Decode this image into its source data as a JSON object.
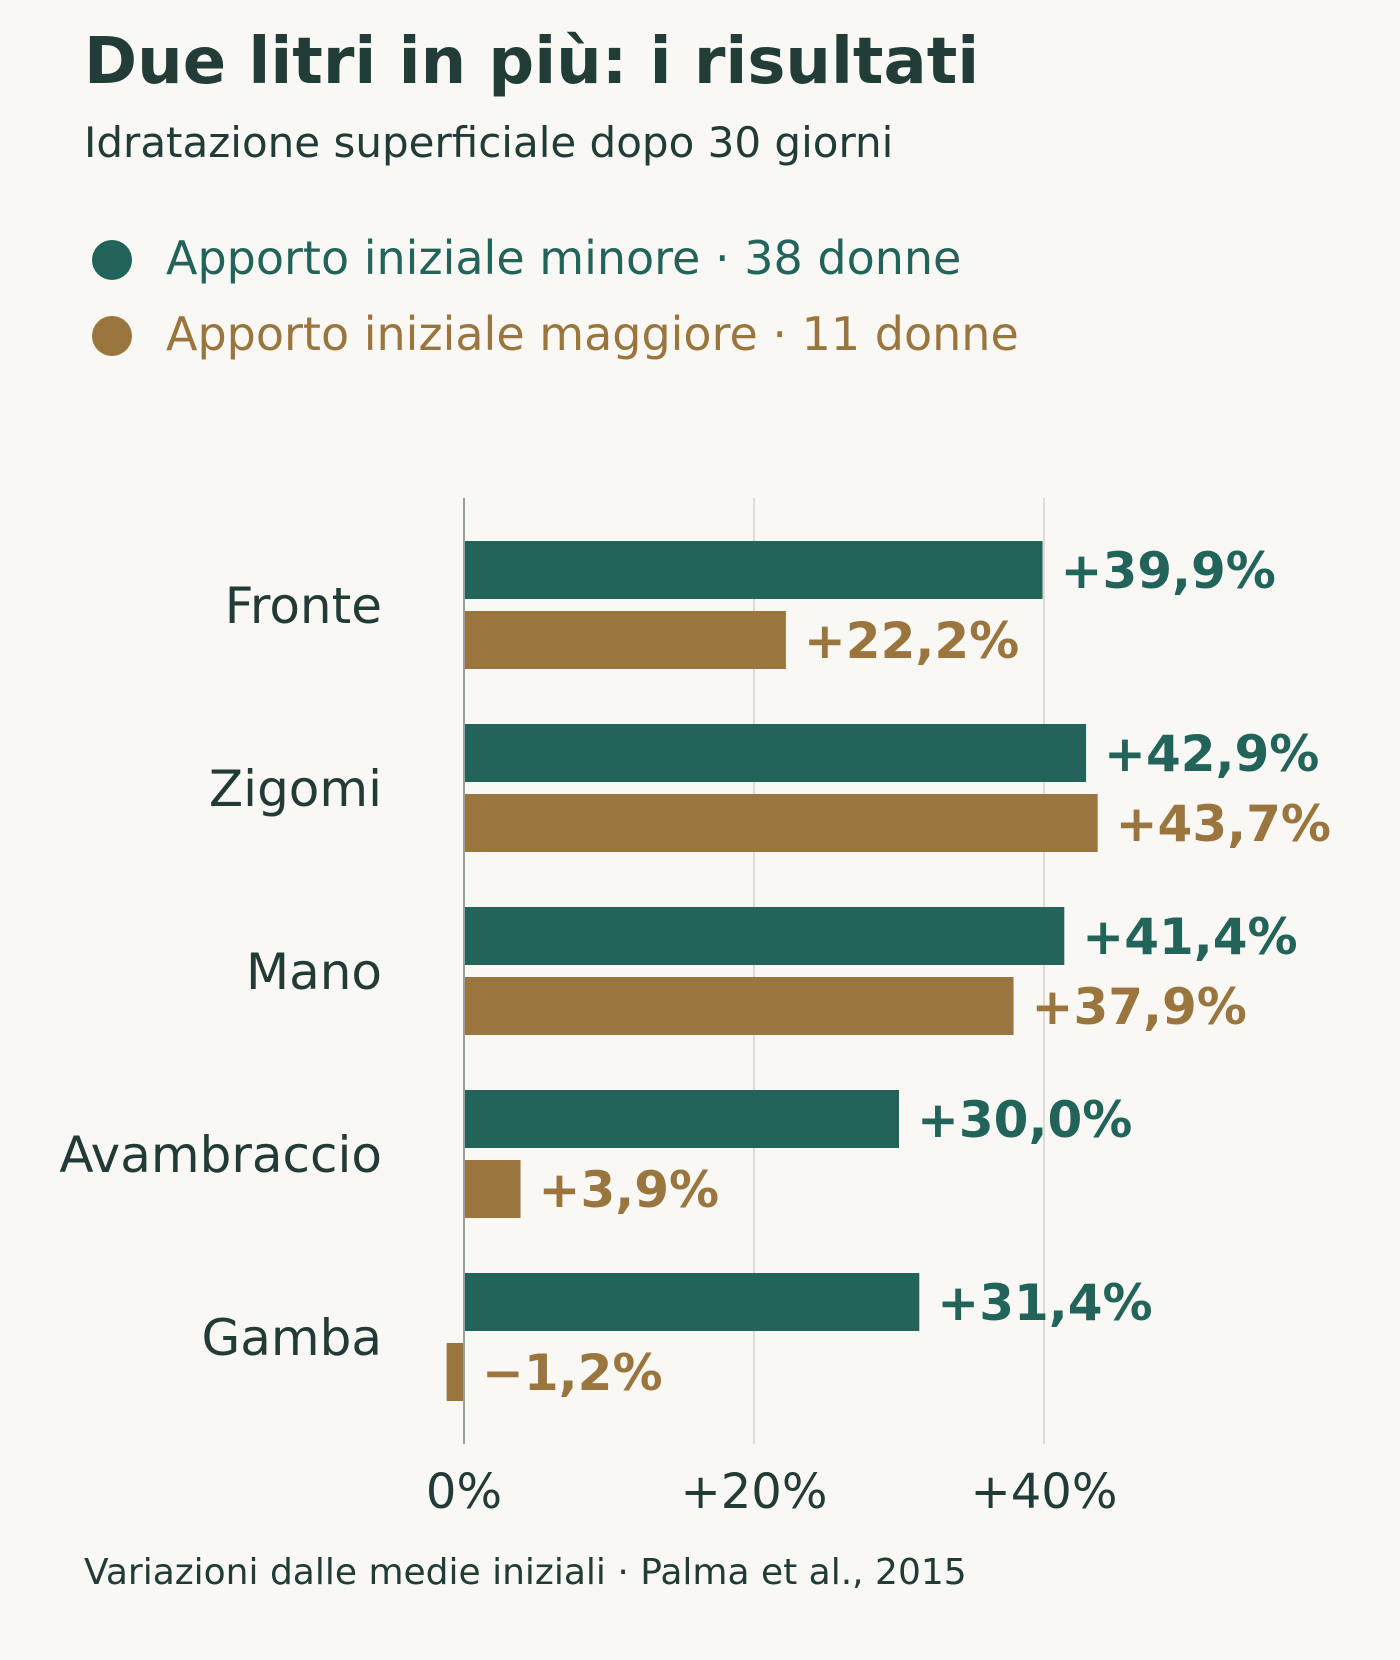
{
  "chart_data": {
    "type": "bar",
    "orientation": "horizontal",
    "title": "Due litri in più: i risultati",
    "subtitle": "Idratazione superficiale dopo 30 giorni",
    "categories": [
      "Fronte",
      "Zigomi",
      "Mano",
      "Avambraccio",
      "Gamba"
    ],
    "series": [
      {
        "name": "Apporto iniziale minore · 38 donne",
        "color": "#22645a",
        "values": [
          39.9,
          42.9,
          41.4,
          30.0,
          31.4
        ],
        "labels": [
          "+39,9%",
          "+42,9%",
          "+41,4%",
          "+30,0%",
          "+31,4%"
        ]
      },
      {
        "name": "Apporto iniziale maggiore · 11 donne",
        "color": "#9a763e",
        "values": [
          22.2,
          43.7,
          37.9,
          3.9,
          -1.2
        ],
        "labels": [
          "+22,2%",
          "+43,7%",
          "+37,9%",
          "+3,9%",
          "−1,2%"
        ]
      }
    ],
    "x_ticks": [
      {
        "value": 0,
        "label": "0%"
      },
      {
        "value": 20,
        "label": "+20%"
      },
      {
        "value": 40,
        "label": "+40%"
      }
    ],
    "xlim": [
      -2,
      58
    ],
    "grid": "vertical",
    "legend_position": "top-left",
    "footnote": "Variazioni dalle medie iniziali · Palma et al., 2015"
  }
}
